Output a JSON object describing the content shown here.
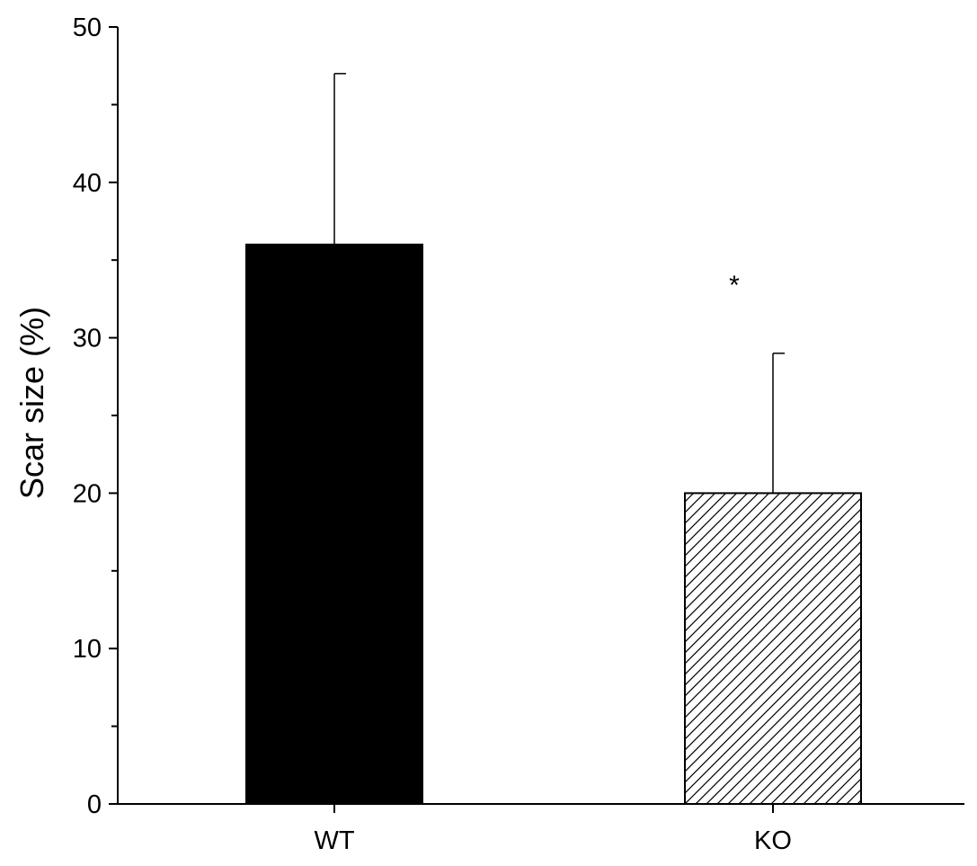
{
  "chart_data": {
    "type": "bar",
    "title": "",
    "xlabel": "",
    "ylabel": "Scar size (%)",
    "ylim": [
      0,
      50
    ],
    "y_ticks": [
      "0",
      "10",
      "20",
      "30",
      "40",
      "50"
    ],
    "y_tick_values": [
      0,
      10,
      20,
      30,
      40,
      50
    ],
    "y_minor_ticks": [
      5,
      15,
      25,
      35,
      45
    ],
    "categories": [
      "WT",
      "KO"
    ],
    "values": [
      36,
      20
    ],
    "error_plus": [
      11,
      9
    ],
    "bar_styles": [
      "solid-black",
      "diagonal-hatch"
    ],
    "annotations": [
      {
        "category": "KO",
        "text": "*",
        "y": 33.5
      }
    ],
    "grid": false,
    "legend": "none"
  },
  "colors": {
    "axis": "#000000",
    "solid_bar": "#000000",
    "hatch_bar_fill": "#ffffff",
    "hatch_lines": "#000000"
  }
}
